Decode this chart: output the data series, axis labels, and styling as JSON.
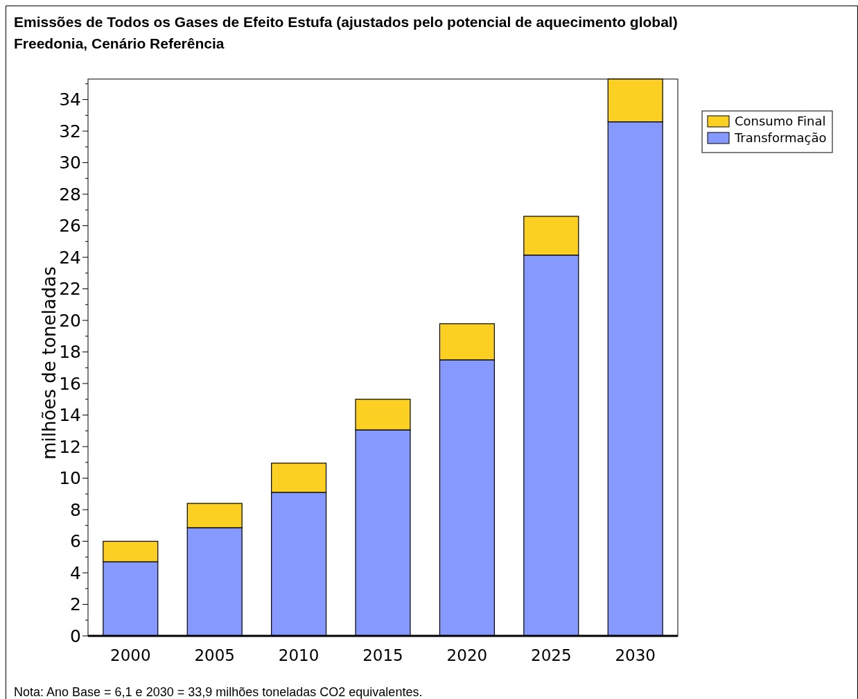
{
  "chart_data": {
    "type": "bar",
    "title": "Emissões de Todos os Gases de Efeito Estufa (ajustados pelo potencial de aquecimento global)",
    "subtitle": "Freedonia, Cenário Referência",
    "ylabel": "milhões de toneladas",
    "annotations": [
      "Nota: Ano Base = 6,1 e 2030  = 33,9 milhões toneladas CO2 equivalentes."
    ],
    "categories": [
      "2000",
      "2005",
      "2010",
      "2015",
      "2020",
      "2025",
      "2030"
    ],
    "series": [
      {
        "name": "Transformação",
        "color": "#8599ff",
        "values": [
          4.7,
          6.86,
          9.1,
          13.06,
          17.5,
          24.14,
          32.59
        ]
      },
      {
        "name": "Consumo Final",
        "color": "#fcd022",
        "values": [
          1.3,
          1.54,
          1.85,
          1.94,
          2.29,
          2.46,
          2.71
        ]
      }
    ],
    "stacked": true,
    "ylim": [
      0,
      35.3
    ],
    "yticks": [
      0,
      {
        "value": 1,
        "label": null
      },
      2,
      {
        "value": 3,
        "label": null
      },
      4,
      {
        "value": 5,
        "label": null
      },
      6,
      {
        "value": 7,
        "label": null
      },
      8,
      {
        "value": 9,
        "label": null
      },
      10,
      {
        "value": 11,
        "label": null
      },
      12,
      {
        "value": 13,
        "label": null
      },
      14,
      {
        "value": 15,
        "label": null
      },
      16,
      {
        "value": 17,
        "label": null
      },
      18,
      {
        "value": 19,
        "label": null
      },
      20,
      {
        "value": 21,
        "label": null
      },
      22,
      {
        "value": 23,
        "label": null
      },
      24,
      {
        "value": 25,
        "label": null
      },
      26,
      {
        "value": 27,
        "label": null
      },
      28,
      {
        "value": 29,
        "label": null
      },
      30,
      {
        "value": 31,
        "label": null
      },
      32,
      {
        "value": 33,
        "label": null
      },
      34,
      {
        "value": 35,
        "label": null
      }
    ],
    "grid": false,
    "legend": "right"
  }
}
